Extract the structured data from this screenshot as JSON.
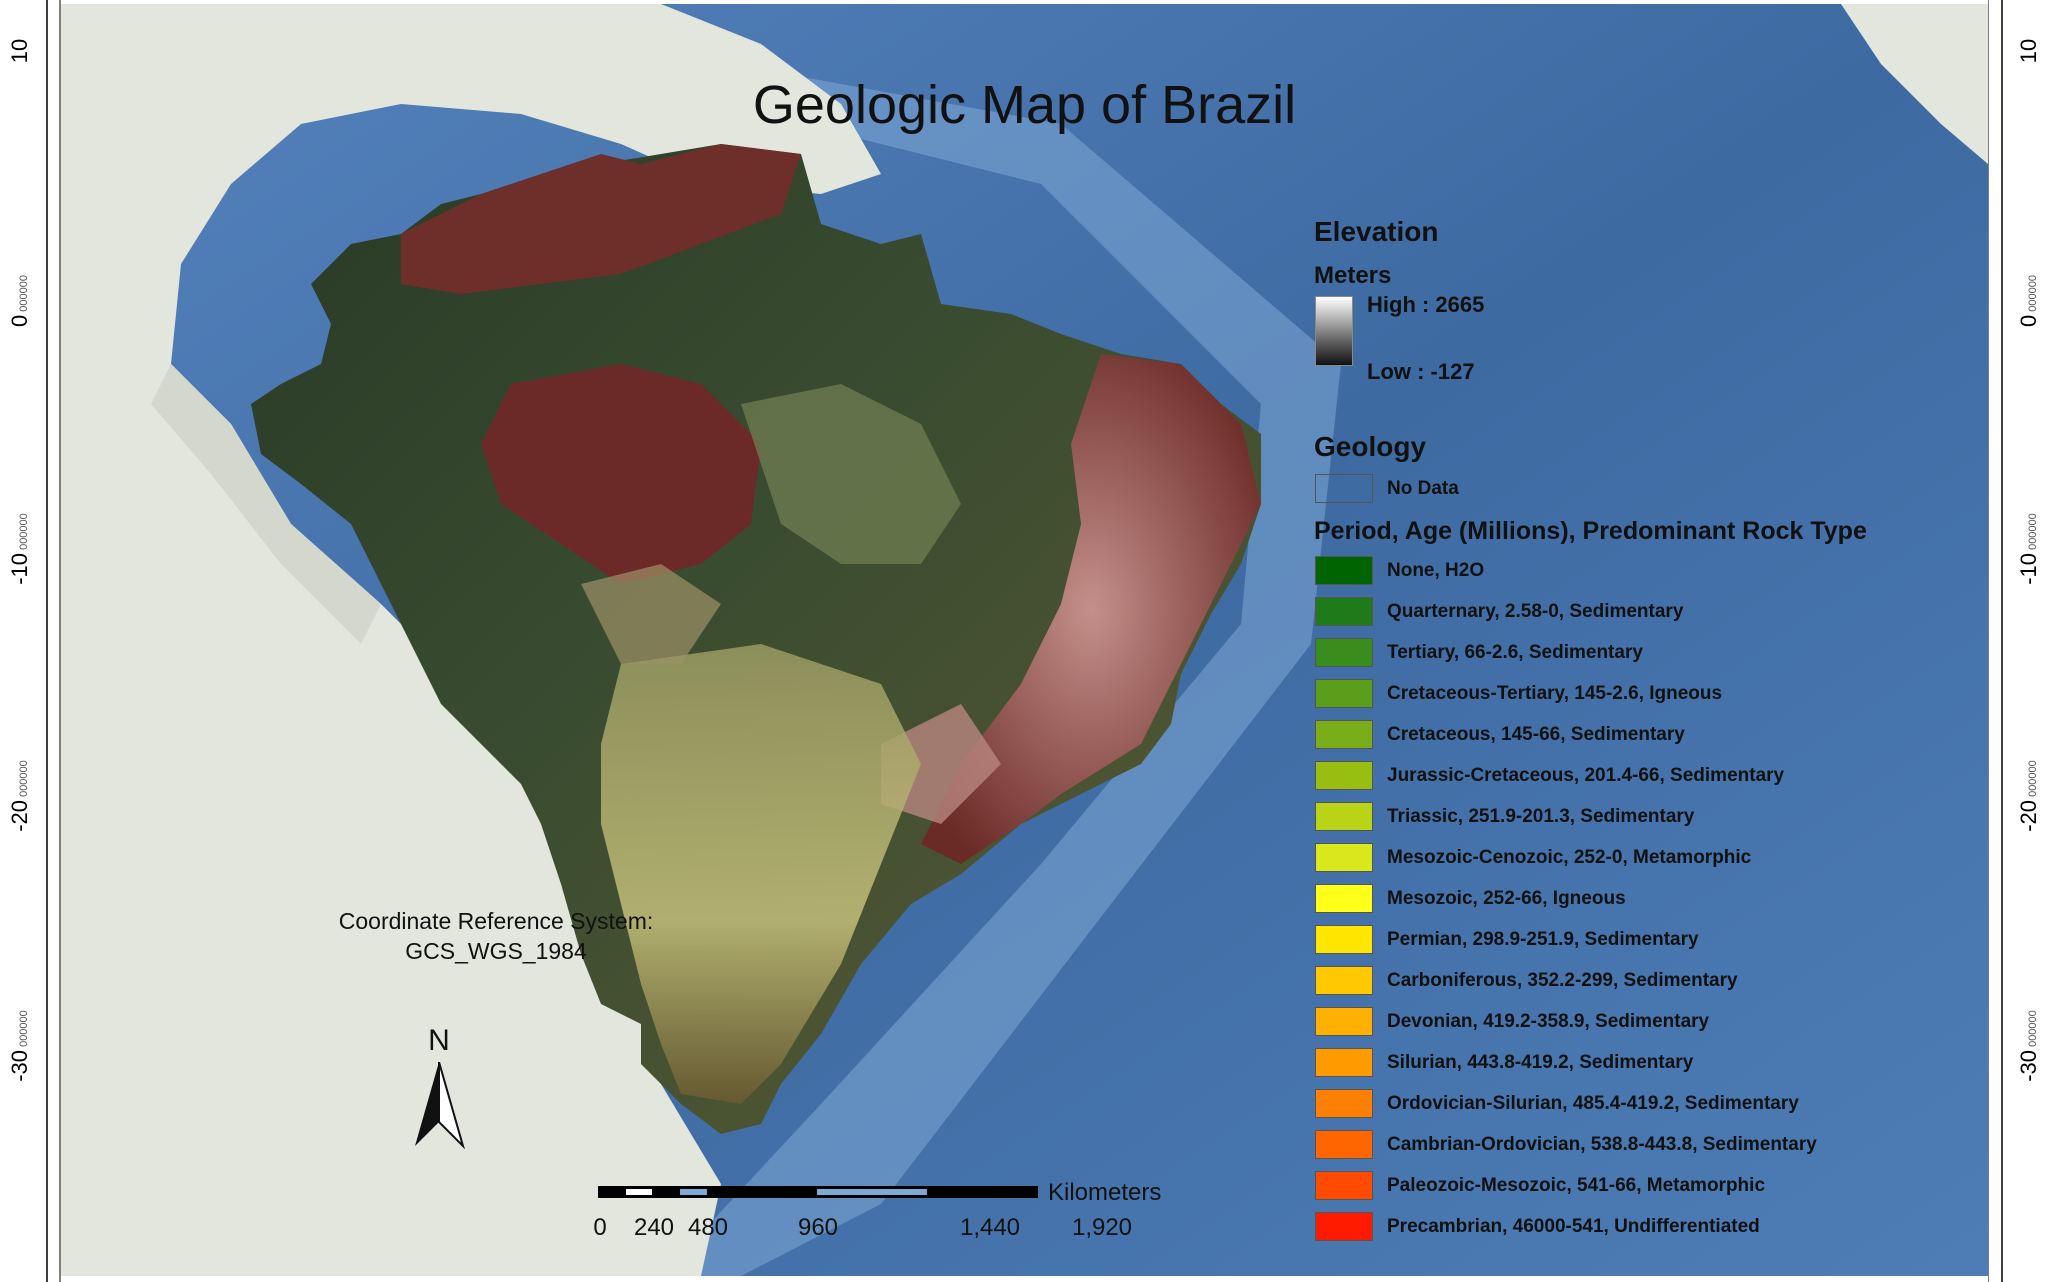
{
  "title": "Geologic Map of Brazil",
  "axis_ticks_left": [
    {
      "label": "10",
      "small": ""
    },
    {
      "label": "0",
      "small": "000000"
    },
    {
      "label": "-10",
      "small": "000000"
    },
    {
      "label": "-20",
      "small": "000000"
    },
    {
      "label": "-30",
      "small": "000000"
    }
  ],
  "axis_ticks_right": [
    {
      "label": "10",
      "small": ""
    },
    {
      "label": "0",
      "small": "000000"
    },
    {
      "label": "-10",
      "small": "000000"
    },
    {
      "label": "-20",
      "small": "000000"
    },
    {
      "label": "-30",
      "small": "000000"
    }
  ],
  "legend": {
    "elevation_heading": "Elevation",
    "elevation_units": "Meters",
    "elevation_high": "High : 2665",
    "elevation_low": "Low : -127",
    "geology_heading": "Geology",
    "no_data_label": "No Data",
    "period_heading": "Period, Age (Millions), Predominant Rock Type",
    "items": [
      {
        "label": "None, H2O",
        "color": "#006400"
      },
      {
        "label": "Quarternary, 2.58-0, Sedimentary",
        "color": "#1f7a1a"
      },
      {
        "label": "Tertiary, 66-2.6, Sedimentary",
        "color": "#3a8c1c"
      },
      {
        "label": "Cretaceous-Tertiary, 145-2.6, Igneous",
        "color": "#5a9e1c"
      },
      {
        "label": "Cretaceous, 145-66, Sedimentary",
        "color": "#79ad1a"
      },
      {
        "label": "Jurassic-Cretaceous, 201.4-66, Sedimentary",
        "color": "#98be12"
      },
      {
        "label": "Triassic, 251.9-201.3, Sedimentary",
        "color": "#b9d416"
      },
      {
        "label": "Mesozoic-Cenozoic, 252-0, Metamorphic",
        "color": "#d9e81c"
      },
      {
        "label": "Mesozoic, 252-66, Igneous",
        "color": "#ffff1a"
      },
      {
        "label": "Permian, 298.9-251.9, Sedimentary",
        "color": "#ffe600"
      },
      {
        "label": "Carboniferous, 352.2-299, Sedimentary",
        "color": "#ffc800"
      },
      {
        "label": "Devonian, 419.2-358.9, Sedimentary",
        "color": "#ffb000"
      },
      {
        "label": "Silurian, 443.8-419.2, Sedimentary",
        "color": "#ff9a00"
      },
      {
        "label": "Ordovician-Silurian, 485.4-419.2, Sedimentary",
        "color": "#ff8000"
      },
      {
        "label": "Cambrian-Ordovician, 538.8-443.8, Sedimentary",
        "color": "#ff6600"
      },
      {
        "label": "Paleozoic-Mesozoic, 541-66, Metamorphic",
        "color": "#ff4a00"
      },
      {
        "label": "Precambrian, 46000-541, Undifferentiated",
        "color": "#ff1a00"
      }
    ]
  },
  "crs": {
    "line1": "Coordinate Reference System:",
    "line2": "GCS_WGS_1984"
  },
  "north_arrow": {
    "label": "N",
    "icon": "north-arrow-icon"
  },
  "scale_bar": {
    "unit": "Kilometers",
    "labels": [
      "0",
      "240",
      "480",
      "960",
      "1,440",
      "1,920"
    ]
  },
  "colors": {
    "ocean": "#3f6fa6",
    "land": "#e4e7df",
    "brazil_dark": "#2f3d2b",
    "brazil_red": "#6e2b28"
  }
}
